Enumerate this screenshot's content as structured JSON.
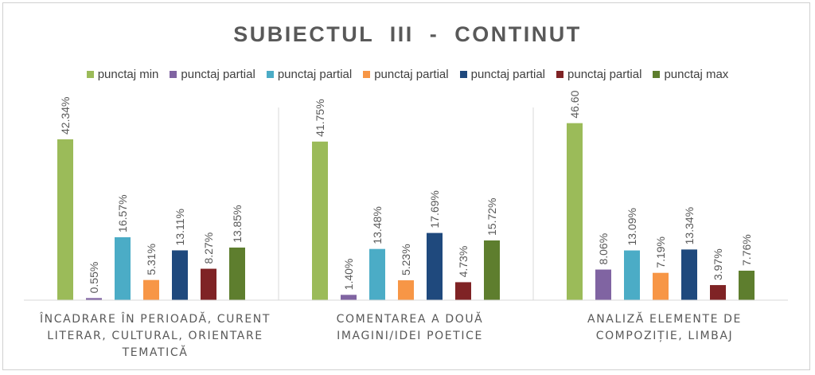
{
  "chart_data": {
    "type": "bar",
    "title": "SUBIECTUL  III  -  CONTINUT",
    "categories": [
      [
        "ÎNCADRARE ÎN PERIOADĂ, CURENT",
        "LITERAR, CULTURAL, ORIENTARE",
        "TEMATICĂ"
      ],
      [
        "COMENTAREA A DOUĂ",
        "IMAGINI/IDEI POETICE"
      ],
      [
        "ANALIZĂ ELEMENTE DE",
        "COMPOZIȚIE, LIMBAJ"
      ]
    ],
    "series": [
      {
        "name": "punctaj min",
        "color": "#9bbb59",
        "values": [
          42.34,
          41.75,
          46.6
        ],
        "labels": [
          "42.34%",
          "41.75%",
          "46.60"
        ]
      },
      {
        "name": "punctaj partial",
        "color": "#8064a2",
        "values": [
          0.55,
          1.4,
          8.06
        ],
        "labels": [
          "0.55%",
          "1.40%",
          "8.06%"
        ]
      },
      {
        "name": "punctaj partial",
        "color": "#4bacc6",
        "values": [
          16.57,
          13.48,
          13.09
        ],
        "labels": [
          "16.57%",
          "13.48%",
          "13.09%"
        ]
      },
      {
        "name": "punctaj partial",
        "color": "#f79646",
        "values": [
          5.31,
          5.23,
          7.19
        ],
        "labels": [
          "5.31%",
          "5.23%",
          "7.19%"
        ]
      },
      {
        "name": "punctaj partial",
        "color": "#1f497d",
        "values": [
          13.11,
          17.69,
          13.34
        ],
        "labels": [
          "13.11%",
          "17.69%",
          "13.34%"
        ]
      },
      {
        "name": "punctaj partial",
        "color": "#7f2325",
        "values": [
          8.27,
          4.73,
          3.97
        ],
        "labels": [
          "8.27%",
          "4.73%",
          "3.97%"
        ]
      },
      {
        "name": "punctaj max",
        "color": "#5e7e2e",
        "values": [
          13.85,
          15.72,
          7.76
        ],
        "labels": [
          "13.85%",
          "15.72%",
          "7.76%"
        ]
      }
    ],
    "ylim": [
      0,
      48
    ],
    "grid": false,
    "legend_position": "top"
  }
}
